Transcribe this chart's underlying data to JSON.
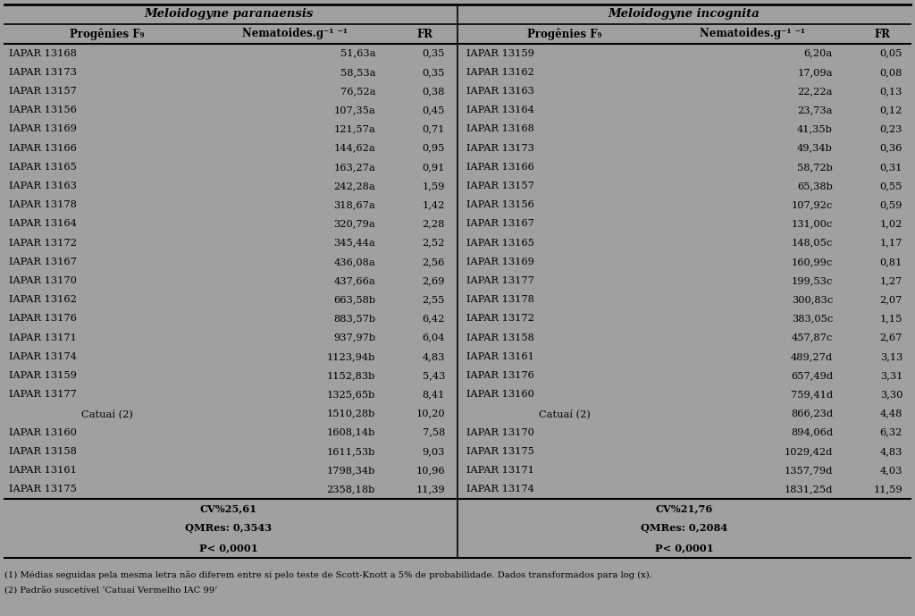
{
  "title_left": "Meloidogyne paranaensis",
  "title_right": "Meloidogyne incognita",
  "left_data": [
    [
      "IAPAR 13168",
      "51,63a",
      "0,35"
    ],
    [
      "IAPAR 13173",
      "58,53a",
      "0,35"
    ],
    [
      "IAPAR 13157",
      "76,52a",
      "0,38"
    ],
    [
      "IAPAR 13156",
      "107,35a",
      "0,45"
    ],
    [
      "IAPAR 13169",
      "121,57a",
      "0,71"
    ],
    [
      "IAPAR 13166",
      "144,62a",
      "0,95"
    ],
    [
      "IAPAR 13165",
      "163,27a",
      "0,91"
    ],
    [
      "IAPAR 13163",
      "242,28a",
      "1,59"
    ],
    [
      "IAPAR 13178",
      "318,67a",
      "1,42"
    ],
    [
      "IAPAR 13164",
      "320,79a",
      "2,28"
    ],
    [
      "IAPAR 13172",
      "345,44a",
      "2,52"
    ],
    [
      "IAPAR 13167",
      "436,08a",
      "2,56"
    ],
    [
      "IAPAR 13170",
      "437,66a",
      "2,69"
    ],
    [
      "IAPAR 13162",
      "663,58b",
      "2,55"
    ],
    [
      "IAPAR 13176",
      "883,57b",
      "6,42"
    ],
    [
      "IAPAR 13171",
      "937,97b",
      "6,04"
    ],
    [
      "IAPAR 13174",
      "1123,94b",
      "4,83"
    ],
    [
      "IAPAR 13159",
      "1152,83b",
      "5,43"
    ],
    [
      "IAPAR 13177",
      "1325,65b",
      "8,41"
    ],
    [
      "Catuaí (2)",
      "1510,28b",
      "10,20"
    ],
    [
      "IAPAR 13160",
      "1608,14b",
      "7,58"
    ],
    [
      "IAPAR 13158",
      "1611,53b",
      "9,03"
    ],
    [
      "IAPAR 13161",
      "1798,34b",
      "10,96"
    ],
    [
      "IAPAR 13175",
      "2358,18b",
      "11,39"
    ]
  ],
  "right_data": [
    [
      "IAPAR 13159",
      "6,20a",
      "0,05"
    ],
    [
      "IAPAR 13162",
      "17,09a",
      "0,08"
    ],
    [
      "IAPAR 13163",
      "22,22a",
      "0,13"
    ],
    [
      "IAPAR 13164",
      "23,73a",
      "0,12"
    ],
    [
      "IAPAR 13168",
      "41,35b",
      "0,23"
    ],
    [
      "IAPAR 13173",
      "49,34b",
      "0,36"
    ],
    [
      "IAPAR 13166",
      "58,72b",
      "0,31"
    ],
    [
      "IAPAR 13157",
      "65,38b",
      "0,55"
    ],
    [
      "IAPAR 13156",
      "107,92c",
      "0,59"
    ],
    [
      "IAPAR 13167",
      "131,00c",
      "1,02"
    ],
    [
      "IAPAR 13165",
      "148,05c",
      "1,17"
    ],
    [
      "IAPAR 13169",
      "160,99c",
      "0,81"
    ],
    [
      "IAPAR 13177",
      "199,53c",
      "1,27"
    ],
    [
      "IAPAR 13178",
      "300,83c",
      "2,07"
    ],
    [
      "IAPAR 13172",
      "383,05c",
      "1,15"
    ],
    [
      "IAPAR 13158",
      "457,87c",
      "2,67"
    ],
    [
      "IAPAR 13161",
      "489,27d",
      "3,13"
    ],
    [
      "IAPAR 13176",
      "657,49d",
      "3,31"
    ],
    [
      "IAPAR 13160",
      "759,41d",
      "3,30"
    ],
    [
      "Catuaí (2)",
      "866,23d",
      "4,48"
    ],
    [
      "IAPAR 13170",
      "894,06d",
      "6,32"
    ],
    [
      "IAPAR 13175",
      "1029,42d",
      "4,83"
    ],
    [
      "IAPAR 13171",
      "1357,79d",
      "4,03"
    ],
    [
      "IAPAR 13174",
      "1831,25d",
      "11,59"
    ]
  ],
  "left_stats": [
    "CV%25,61",
    "QMRes: 0,3543",
    "P< 0,0001"
  ],
  "right_stats": [
    "CV%21,76",
    "QMRes: 0,2084",
    "P< 0,0001"
  ],
  "footnote1": "(1) Médias seguidas pela mesma letra não diferem entre si pelo teste de Scott-Knott a 5% de probabilidade. Dados transformados para log (x).",
  "footnote2": "(2) Padrão suscetível ‘Catuaí Vermelho IAC 99’",
  "col_header_left1": "Progênies F",
  "col_header_left2": "Nematoides.g",
  "col_header_left3": "FR",
  "bg_color": "#a0a0a0",
  "text_color": "#000000",
  "line_color": "#000000"
}
